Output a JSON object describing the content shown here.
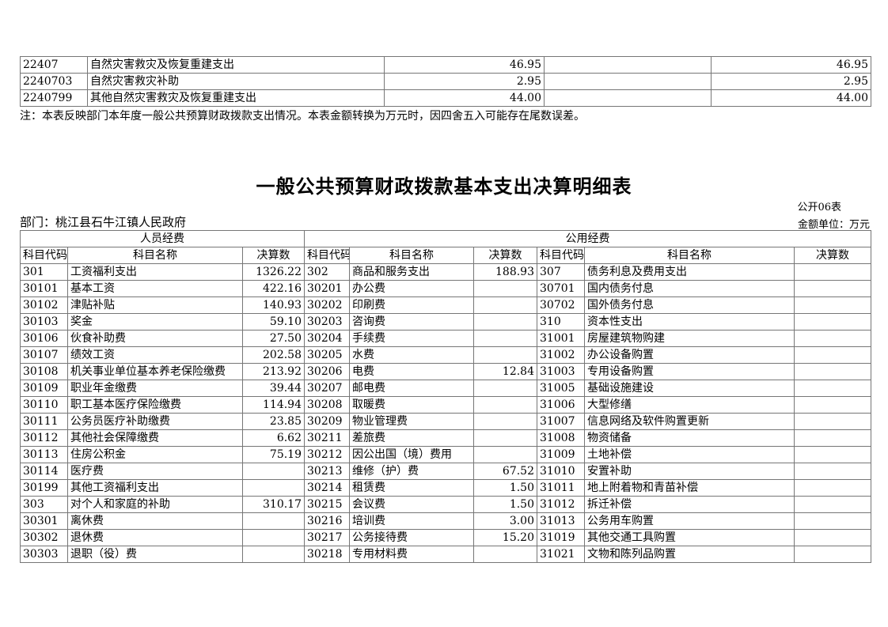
{
  "note": "注：本表反映部门本年度一般公共预算财政拨款支出情况。本表金额转换为万元时，因四舍五入可能存在尾数误差。",
  "title": "一般公共预算财政拨款基本支出决算明细表",
  "meta": {
    "sheet_label": "公开06表",
    "unit_label": "金额单位：万元",
    "department_label": "部门：桃江县石牛江镇人民政府"
  },
  "colors": {
    "border": "#767676",
    "text": "#000000",
    "background": "#ffffff"
  },
  "top_table": {
    "rows": [
      {
        "code": "22407",
        "name": "自然灾害救灾及恢复重建支出",
        "value1": "46.95",
        "value2": "",
        "value3": "46.95"
      },
      {
        "code": "2240703",
        "name": "自然灾害救灾补助",
        "value1": "2.95",
        "value2": "",
        "value3": "2.95"
      },
      {
        "code": "2240799",
        "name": "其他自然灾害救灾及恢复重建支出",
        "value1": "44.00",
        "value2": "",
        "value3": "44.00"
      }
    ]
  },
  "main_table": {
    "group_headers": [
      {
        "label": "人员经费",
        "span": 3
      },
      {
        "label": "公用经费",
        "span": 6
      }
    ],
    "column_headers": [
      "科目代码",
      "科目名称",
      "决算数",
      "科目代码",
      "科目名称",
      "决算数",
      "科目代码",
      "科目名称",
      "决算数"
    ],
    "rows": [
      [
        "301",
        "工资福利支出",
        "1326.22",
        "302",
        "商品和服务支出",
        "188.93",
        "307",
        "债务利息及费用支出",
        ""
      ],
      [
        "30101",
        "基本工资",
        "422.16",
        "30201",
        "办公费",
        "",
        "30701",
        "国内债务付息",
        ""
      ],
      [
        "30102",
        "津贴补贴",
        "140.93",
        "30202",
        "印刷费",
        "",
        "30702",
        "国外债务付息",
        ""
      ],
      [
        "30103",
        "奖金",
        "59.10",
        "30203",
        "咨询费",
        "",
        "310",
        "资本性支出",
        ""
      ],
      [
        "30106",
        "伙食补助费",
        "27.50",
        "30204",
        "手续费",
        "",
        "31001",
        "房屋建筑物购建",
        ""
      ],
      [
        "30107",
        "绩效工资",
        "202.58",
        "30205",
        "水费",
        "",
        "31002",
        "办公设备购置",
        ""
      ],
      [
        "30108",
        "机关事业单位基本养老保险缴费",
        "213.92",
        "30206",
        "电费",
        "12.84",
        "31003",
        "专用设备购置",
        ""
      ],
      [
        "30109",
        "职业年金缴费",
        "39.44",
        "30207",
        "邮电费",
        "",
        "31005",
        "基础设施建设",
        ""
      ],
      [
        "30110",
        "职工基本医疗保险缴费",
        "114.94",
        "30208",
        "取暖费",
        "",
        "31006",
        "大型修缮",
        ""
      ],
      [
        "30111",
        "公务员医疗补助缴费",
        "23.85",
        "30209",
        "物业管理费",
        "",
        "31007",
        "信息网络及软件购置更新",
        ""
      ],
      [
        "30112",
        "其他社会保障缴费",
        "6.62",
        "30211",
        "差旅费",
        "",
        "31008",
        "物资储备",
        ""
      ],
      [
        "30113",
        "住房公积金",
        "75.19",
        "30212",
        "因公出国（境）费用",
        "",
        "31009",
        "土地补偿",
        ""
      ],
      [
        "30114",
        "医疗费",
        "",
        "30213",
        "维修（护）费",
        "67.52",
        "31010",
        "安置补助",
        ""
      ],
      [
        "30199",
        "其他工资福利支出",
        "",
        "30214",
        "租赁费",
        "1.50",
        "31011",
        "地上附着物和青苗补偿",
        ""
      ],
      [
        "303",
        "对个人和家庭的补助",
        "310.17",
        "30215",
        "会议费",
        "1.50",
        "31012",
        "拆迁补偿",
        ""
      ],
      [
        "30301",
        "离休费",
        "",
        "30216",
        "培训费",
        "3.00",
        "31013",
        "公务用车购置",
        ""
      ],
      [
        "30302",
        "退休费",
        "",
        "30217",
        "公务接待费",
        "15.20",
        "31019",
        "其他交通工具购置",
        ""
      ],
      [
        "30303",
        "退职（役）费",
        "",
        "30218",
        "专用材料费",
        "",
        "31021",
        "文物和陈列品购置",
        ""
      ]
    ]
  }
}
